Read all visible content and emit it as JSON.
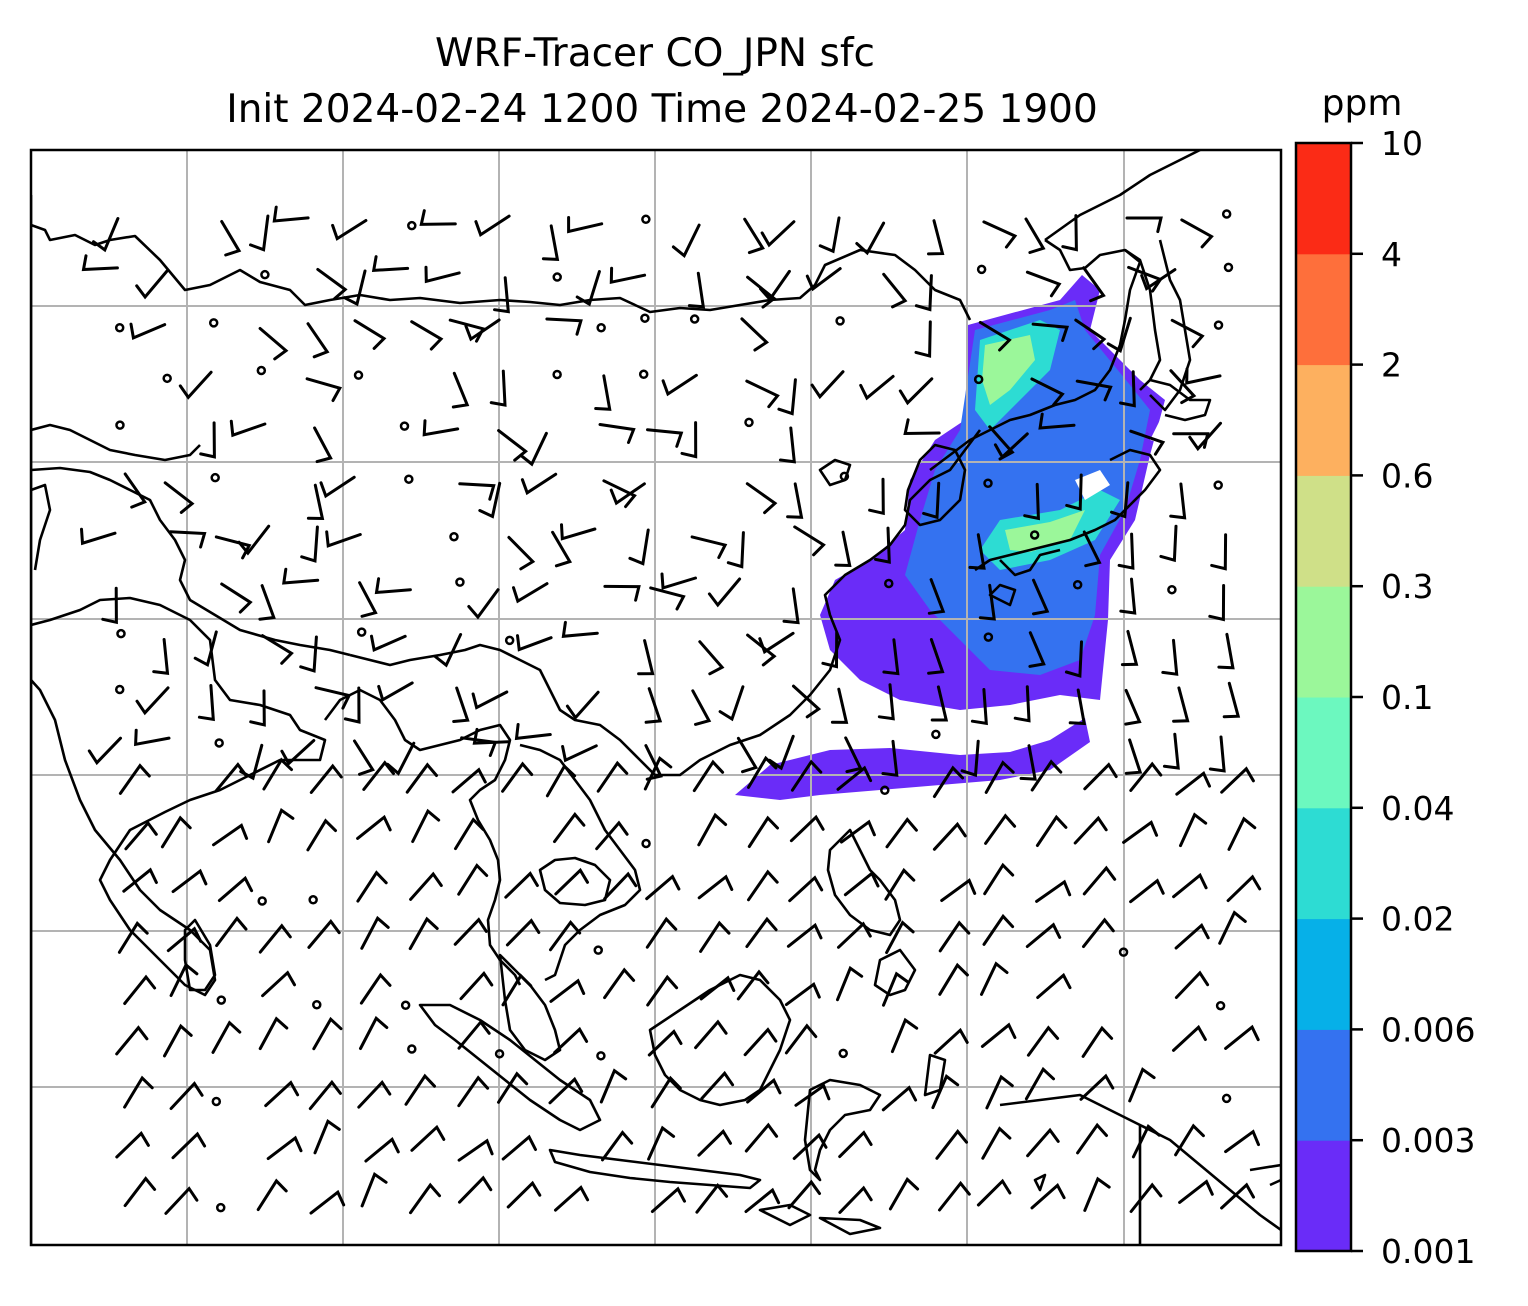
{
  "title": {
    "line1": "WRF-Tracer CO_JPN sfc",
    "line2": "Init 2024-02-24 1200 Time 2024-02-25 1900"
  },
  "colorbar": {
    "unit": "ppm",
    "levels": [
      "0.001",
      "0.003",
      "0.006",
      "0.02",
      "0.04",
      "0.1",
      "0.3",
      "0.6",
      "2",
      "4",
      "10"
    ],
    "colors": [
      "#6a2cf8",
      "#3472f0",
      "#06b0e8",
      "#2ddcd3",
      "#6cf8bf",
      "#9bf79a",
      "#cfe088",
      "#fdb05f",
      "#fe6f3b",
      "#fb2b16"
    ]
  },
  "map": {
    "background": "#ffffff",
    "gridline_color": "#b3b3b3",
    "coastline_color": "#000000",
    "field": "CO_JPN tracer concentration",
    "wind": "surface wind barbs"
  }
}
